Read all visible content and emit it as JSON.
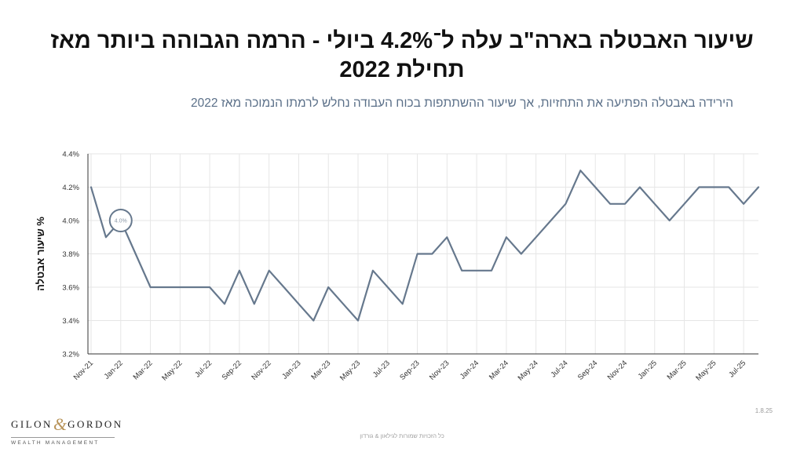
{
  "header": {
    "title": "שיעור האבטלה בארה\"ב עלה ל־4.2% ביולי - הרמה הגבוהה ביותר מאז תחילת 2022",
    "subtitle": "הירידה באבטלה הפתיעה את התחזיות, אך שיעור ההשתתפות בכוח העבודה נחלש לרמתו הנמוכה מאז 2022"
  },
  "chart_data": {
    "type": "line",
    "ylabel": "% שיעור אבטלה",
    "ylim": [
      3.2,
      4.4
    ],
    "yticks": [
      "3.2%",
      "3.4%",
      "3.6%",
      "3.8%",
      "4.0%",
      "4.2%",
      "4.4%"
    ],
    "xtick_labels": [
      "Nov-21",
      "Jan-22",
      "Mar-22",
      "May-22",
      "Jul-22",
      "Sep-22",
      "Nov-22",
      "Jan-23",
      "Mar-23",
      "May-23",
      "Jul-23",
      "Sep-23",
      "Nov-23",
      "Jan-24",
      "Mar-24",
      "May-24",
      "Jul-24",
      "Sep-24",
      "Nov-24",
      "Jan-25",
      "Mar-25",
      "May-25",
      "Jul-25"
    ],
    "grid": true,
    "line_color": "#66788d",
    "annotation": {
      "label": "4.0%",
      "x_index": 2,
      "value": 4.0
    },
    "series": [
      {
        "values": [
          4.2,
          3.9,
          4.0,
          3.8,
          3.6,
          3.6,
          3.6,
          3.6,
          3.6,
          3.5,
          3.7,
          3.5,
          3.7,
          3.6,
          3.5,
          3.4,
          3.6,
          3.5,
          3.4,
          3.7,
          3.6,
          3.5,
          3.8,
          3.8,
          3.9,
          3.7,
          3.7,
          3.7,
          3.9,
          3.8,
          3.9,
          4.0,
          4.1,
          4.3,
          4.2,
          4.1,
          4.1,
          4.2,
          4.1,
          4.0,
          4.1,
          4.2,
          4.2,
          4.2,
          4.1,
          4.2
        ]
      }
    ]
  },
  "footer": {
    "logo_left": "GILON",
    "logo_amp": "&",
    "logo_right": "GORDON",
    "logo_sub": "WEALTH MANAGEMENT",
    "date": "1.8.25",
    "copyright": "כל הזכויות שמורות לגילאון & גורדון"
  }
}
